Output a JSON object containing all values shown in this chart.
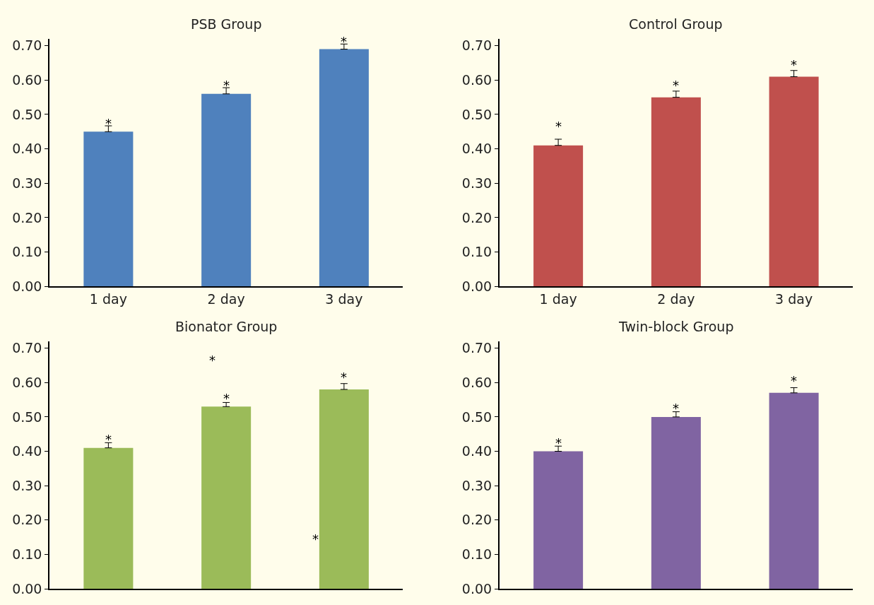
{
  "chart_data": [
    {
      "type": "bar",
      "title": "PSB Group",
      "categories": [
        "1 day",
        "2 day",
        "3 day"
      ],
      "values": [
        0.45,
        0.56,
        0.69
      ],
      "color": "#4f81bd",
      "errors": [
        [
          0.45,
          0.467
        ],
        [
          0.56,
          0.578
        ],
        [
          0.69,
          0.705
        ]
      ],
      "ylim": [
        0,
        0.72
      ],
      "yticks": [
        {
          "value": 0,
          "label": "0.00"
        },
        {
          "value": 0.1,
          "label": "0.10"
        },
        {
          "value": 0.2,
          "label": "0.20"
        },
        {
          "value": 0.3,
          "label": "0.30"
        },
        {
          "value": 0.4,
          "label": "0.40"
        },
        {
          "value": 0.5,
          "label": "0.50"
        },
        {
          "value": 0.6,
          "label": "0.60"
        },
        {
          "value": 0.7,
          "label": "0.70"
        }
      ],
      "grid": false,
      "annotations": [
        "*",
        "*",
        "*"
      ]
    },
    {
      "type": "bar",
      "title": "Control Group",
      "categories": [
        "1 day",
        "2 day",
        "3 day"
      ],
      "values": [
        0.41,
        0.55,
        0.61
      ],
      "color": "#c0504d",
      "errors": [
        [
          0.41,
          0.428
        ],
        [
          0.55,
          0.568
        ],
        [
          0.61,
          0.628
        ]
      ],
      "ylim": [
        0,
        0.72
      ],
      "yticks": [
        {
          "value": 0,
          "label": "0.00"
        },
        {
          "value": 0.1,
          "label": "0.10"
        },
        {
          "value": 0.2,
          "label": "0.20"
        },
        {
          "value": 0.3,
          "label": "0.30"
        },
        {
          "value": 0.4,
          "label": "0.40"
        },
        {
          "value": 0.5,
          "label": "0.50"
        },
        {
          "value": 0.6,
          "label": "0.60"
        },
        {
          "value": 0.7,
          "label": "0.70"
        }
      ],
      "grid": false,
      "annotations": [
        "*",
        "*",
        "*"
      ]
    },
    {
      "type": "bar",
      "title": "Bionator Group",
      "categories": [
        null,
        null,
        null
      ],
      "values": [
        0.41,
        0.53,
        0.58
      ],
      "color": "#9bbb59",
      "errors": [
        [
          0.41,
          0.425
        ],
        [
          0.53,
          0.542
        ],
        [
          0.58,
          0.597
        ]
      ],
      "ylim": [
        0,
        0.72
      ],
      "yticks": [
        {
          "value": 0,
          "label": "0.00"
        },
        {
          "value": 0.1,
          "label": "0.10"
        },
        {
          "value": 0.2,
          "label": "0.20"
        },
        {
          "value": 0.3,
          "label": "0.30"
        },
        {
          "value": 0.4,
          "label": "0.40"
        },
        {
          "value": 0.5,
          "label": "0.50"
        },
        {
          "value": 0.6,
          "label": "0.60"
        },
        {
          "value": 0.7,
          "label": "0.70"
        }
      ],
      "grid": false,
      "annotations": [
        "*",
        "*",
        "*",
        "*",
        "*"
      ]
    },
    {
      "type": "bar",
      "title": "Twin-block Group",
      "categories": [
        null,
        null,
        null
      ],
      "values": [
        0.4,
        0.5,
        0.57
      ],
      "color": "#8064a2",
      "errors": [
        [
          0.4,
          0.415
        ],
        [
          0.5,
          0.515
        ],
        [
          0.57,
          0.585
        ]
      ],
      "ylim": [
        0,
        0.72
      ],
      "yticks": [
        {
          "value": 0,
          "label": "0.00"
        },
        {
          "value": 0.1,
          "label": "0.10"
        },
        {
          "value": 0.2,
          "label": "0.20"
        },
        {
          "value": 0.3,
          "label": "0.30"
        },
        {
          "value": 0.4,
          "label": "0.40"
        },
        {
          "value": 0.5,
          "label": "0.50"
        },
        {
          "value": 0.6,
          "label": "0.60"
        },
        {
          "value": 0.7,
          "label": "0.70"
        }
      ],
      "grid": false,
      "annotations": [
        "*",
        "*",
        "*"
      ]
    }
  ]
}
